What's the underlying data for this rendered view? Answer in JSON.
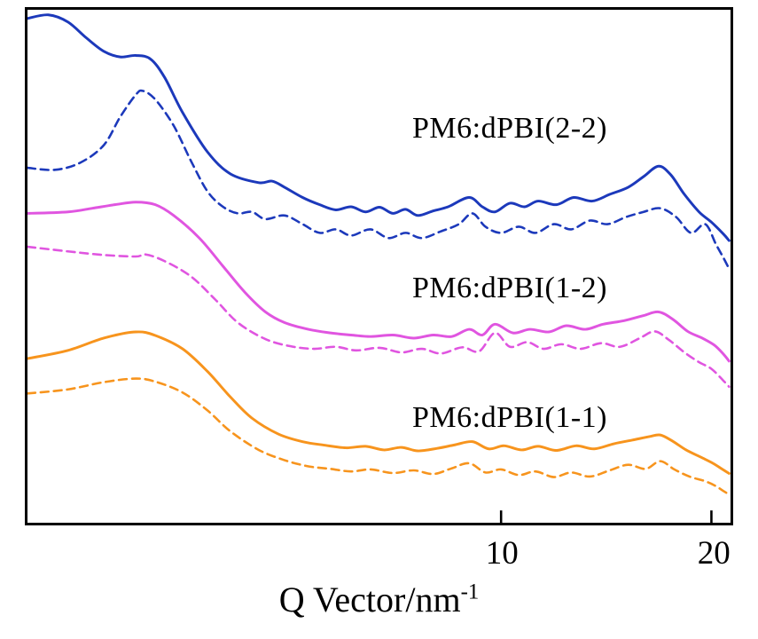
{
  "figure": {
    "background": "#ffffff",
    "frame_color": "#000000"
  },
  "chart_data": {
    "type": "line",
    "title": "",
    "x_scale": "log",
    "xlim": [
      2.1,
      21.3
    ],
    "x_ticks": [
      10,
      20
    ],
    "xlabel_base": "Q Vector/nm",
    "xlabel_exponent": "-1",
    "ylabel": "",
    "ylim": [
      0,
      100
    ],
    "y_units": "arbitrary intensity, stacked offsets, no y ticks shown",
    "grid": false,
    "legend_position": "none",
    "annotations": [
      {
        "label": "PM6:dPBI(2-2)",
        "color": "#1c39bb"
      },
      {
        "label": "PM6:dPBI(1-2)",
        "color": "#e055e0"
      },
      {
        "label": "PM6:dPBI(1-1)",
        "color": "#f7941d"
      }
    ],
    "series": [
      {
        "name": "PM6:dPBI(2-2) solid",
        "color": "#1c39bb",
        "dash": "solid",
        "points": [
          [
            2.1,
            98.3
          ],
          [
            2.25,
            99.0
          ],
          [
            2.4,
            97.6
          ],
          [
            2.55,
            94.5
          ],
          [
            2.7,
            91.9
          ],
          [
            2.85,
            90.8
          ],
          [
            3.0,
            91.1
          ],
          [
            3.15,
            90.4
          ],
          [
            3.3,
            86.8
          ],
          [
            3.5,
            80.0
          ],
          [
            3.8,
            72.3
          ],
          [
            4.1,
            68.0
          ],
          [
            4.5,
            66.3
          ],
          [
            4.7,
            66.6
          ],
          [
            4.9,
            65.4
          ],
          [
            5.2,
            63.4
          ],
          [
            5.5,
            62.0
          ],
          [
            5.8,
            61.0
          ],
          [
            6.1,
            61.6
          ],
          [
            6.4,
            60.6
          ],
          [
            6.7,
            61.5
          ],
          [
            7.0,
            60.3
          ],
          [
            7.3,
            61.1
          ],
          [
            7.6,
            59.9
          ],
          [
            8.0,
            60.8
          ],
          [
            8.4,
            61.6
          ],
          [
            9.0,
            63.4
          ],
          [
            9.4,
            61.6
          ],
          [
            9.8,
            60.6
          ],
          [
            10.3,
            62.3
          ],
          [
            10.8,
            61.6
          ],
          [
            11.3,
            62.7
          ],
          [
            12.0,
            62.0
          ],
          [
            12.7,
            63.4
          ],
          [
            13.5,
            62.7
          ],
          [
            14.3,
            64.0
          ],
          [
            15.2,
            65.4
          ],
          [
            16.0,
            67.5
          ],
          [
            16.8,
            69.5
          ],
          [
            17.5,
            67.8
          ],
          [
            18.3,
            64.0
          ],
          [
            19.2,
            60.6
          ],
          [
            20.0,
            58.6
          ],
          [
            20.8,
            56.3
          ],
          [
            21.2,
            55.0
          ]
        ]
      },
      {
        "name": "PM6:dPBI(2-2) dashed",
        "color": "#1c39bb",
        "dash": "dashed",
        "points": [
          [
            2.1,
            69.2
          ],
          [
            2.3,
            68.8
          ],
          [
            2.5,
            70.2
          ],
          [
            2.7,
            73.6
          ],
          [
            2.85,
            79.1
          ],
          [
            3.0,
            83.4
          ],
          [
            3.07,
            84.2
          ],
          [
            3.2,
            82.5
          ],
          [
            3.4,
            77.4
          ],
          [
            3.6,
            70.5
          ],
          [
            3.8,
            64.6
          ],
          [
            4.0,
            61.6
          ],
          [
            4.2,
            60.3
          ],
          [
            4.4,
            60.6
          ],
          [
            4.6,
            59.2
          ],
          [
            4.9,
            59.9
          ],
          [
            5.2,
            58.2
          ],
          [
            5.5,
            56.5
          ],
          [
            5.8,
            57.2
          ],
          [
            6.1,
            56.0
          ],
          [
            6.5,
            57.2
          ],
          [
            6.9,
            55.5
          ],
          [
            7.3,
            56.5
          ],
          [
            7.7,
            55.5
          ],
          [
            8.2,
            56.8
          ],
          [
            8.7,
            58.2
          ],
          [
            9.1,
            60.3
          ],
          [
            9.5,
            57.7
          ],
          [
            10.0,
            56.5
          ],
          [
            10.6,
            57.7
          ],
          [
            11.2,
            56.5
          ],
          [
            11.9,
            58.2
          ],
          [
            12.6,
            57.2
          ],
          [
            13.4,
            58.9
          ],
          [
            14.2,
            58.2
          ],
          [
            15.1,
            59.6
          ],
          [
            16.0,
            60.6
          ],
          [
            16.9,
            61.3
          ],
          [
            17.8,
            59.6
          ],
          [
            18.7,
            56.5
          ],
          [
            19.6,
            58.2
          ],
          [
            20.3,
            54.3
          ],
          [
            20.8,
            51.7
          ],
          [
            21.2,
            49.5
          ]
        ]
      },
      {
        "name": "PM6:dPBI(1-2) solid",
        "color": "#e055e0",
        "dash": "solid",
        "points": [
          [
            2.1,
            60.3
          ],
          [
            2.4,
            60.6
          ],
          [
            2.6,
            61.3
          ],
          [
            2.8,
            62.0
          ],
          [
            3.0,
            62.5
          ],
          [
            3.2,
            62.0
          ],
          [
            3.4,
            59.9
          ],
          [
            3.7,
            55.5
          ],
          [
            4.0,
            50.0
          ],
          [
            4.3,
            44.9
          ],
          [
            4.6,
            41.1
          ],
          [
            4.9,
            39.0
          ],
          [
            5.3,
            37.7
          ],
          [
            5.7,
            37.0
          ],
          [
            6.1,
            36.6
          ],
          [
            6.5,
            36.3
          ],
          [
            7.0,
            36.6
          ],
          [
            7.5,
            36.0
          ],
          [
            8.0,
            36.6
          ],
          [
            8.5,
            36.3
          ],
          [
            9.0,
            37.7
          ],
          [
            9.4,
            36.6
          ],
          [
            9.8,
            38.7
          ],
          [
            10.4,
            37.0
          ],
          [
            11.0,
            37.7
          ],
          [
            11.7,
            37.2
          ],
          [
            12.4,
            38.4
          ],
          [
            13.2,
            37.7
          ],
          [
            14.0,
            38.7
          ],
          [
            15.0,
            39.4
          ],
          [
            16.0,
            40.4
          ],
          [
            16.8,
            41.1
          ],
          [
            17.6,
            39.7
          ],
          [
            18.5,
            37.3
          ],
          [
            19.4,
            36.0
          ],
          [
            20.2,
            34.6
          ],
          [
            20.8,
            32.9
          ],
          [
            21.2,
            31.5
          ]
        ]
      },
      {
        "name": "PM6:dPBI(1-2) dashed",
        "color": "#e055e0",
        "dash": "dashed",
        "points": [
          [
            2.1,
            53.8
          ],
          [
            2.4,
            52.9
          ],
          [
            2.7,
            52.2
          ],
          [
            3.0,
            51.9
          ],
          [
            3.1,
            52.3
          ],
          [
            3.3,
            51.0
          ],
          [
            3.6,
            48.0
          ],
          [
            3.9,
            43.5
          ],
          [
            4.2,
            39.0
          ],
          [
            4.6,
            35.8
          ],
          [
            5.0,
            34.4
          ],
          [
            5.4,
            33.9
          ],
          [
            5.8,
            34.3
          ],
          [
            6.2,
            33.6
          ],
          [
            6.7,
            34.1
          ],
          [
            7.2,
            33.2
          ],
          [
            7.7,
            33.9
          ],
          [
            8.2,
            33.0
          ],
          [
            8.8,
            34.2
          ],
          [
            9.3,
            33.4
          ],
          [
            9.8,
            37.0
          ],
          [
            10.3,
            34.3
          ],
          [
            10.9,
            35.2
          ],
          [
            11.5,
            33.9
          ],
          [
            12.2,
            34.8
          ],
          [
            13.0,
            33.9
          ],
          [
            13.9,
            35.0
          ],
          [
            14.8,
            34.3
          ],
          [
            15.8,
            36.0
          ],
          [
            16.6,
            37.3
          ],
          [
            17.4,
            35.6
          ],
          [
            18.3,
            33.2
          ],
          [
            19.2,
            31.3
          ],
          [
            20.0,
            30.0
          ],
          [
            20.8,
            27.7
          ],
          [
            21.2,
            26.5
          ]
        ]
      },
      {
        "name": "PM6:dPBI(1-1) solid",
        "color": "#f7941d",
        "dash": "solid",
        "points": [
          [
            2.1,
            32.0
          ],
          [
            2.4,
            33.6
          ],
          [
            2.7,
            36.0
          ],
          [
            3.0,
            37.2
          ],
          [
            3.2,
            36.5
          ],
          [
            3.5,
            33.9
          ],
          [
            3.8,
            29.5
          ],
          [
            4.1,
            24.5
          ],
          [
            4.4,
            20.4
          ],
          [
            4.8,
            17.3
          ],
          [
            5.2,
            15.8
          ],
          [
            5.6,
            15.1
          ],
          [
            6.0,
            14.6
          ],
          [
            6.4,
            14.9
          ],
          [
            6.8,
            14.2
          ],
          [
            7.2,
            14.7
          ],
          [
            7.6,
            14.0
          ],
          [
            8.1,
            14.5
          ],
          [
            8.6,
            15.2
          ],
          [
            9.1,
            15.8
          ],
          [
            9.6,
            14.4
          ],
          [
            10.1,
            15.0
          ],
          [
            10.7,
            14.2
          ],
          [
            11.3,
            14.9
          ],
          [
            12.0,
            14.1
          ],
          [
            12.8,
            15.0
          ],
          [
            13.6,
            14.4
          ],
          [
            14.5,
            15.4
          ],
          [
            15.4,
            16.1
          ],
          [
            16.3,
            16.8
          ],
          [
            16.9,
            17.1
          ],
          [
            17.6,
            15.9
          ],
          [
            18.4,
            14.2
          ],
          [
            19.3,
            12.8
          ],
          [
            20.1,
            11.6
          ],
          [
            20.8,
            10.3
          ],
          [
            21.2,
            9.6
          ]
        ]
      },
      {
        "name": "PM6:dPBI(1-1) dashed",
        "color": "#f7941d",
        "dash": "dashed",
        "points": [
          [
            2.1,
            25.2
          ],
          [
            2.4,
            26.0
          ],
          [
            2.7,
            27.4
          ],
          [
            3.0,
            28.1
          ],
          [
            3.2,
            27.5
          ],
          [
            3.5,
            25.4
          ],
          [
            3.8,
            21.9
          ],
          [
            4.1,
            17.8
          ],
          [
            4.5,
            14.2
          ],
          [
            4.9,
            12.2
          ],
          [
            5.3,
            11.0
          ],
          [
            5.7,
            10.5
          ],
          [
            6.1,
            10.0
          ],
          [
            6.5,
            10.4
          ],
          [
            7.0,
            9.7
          ],
          [
            7.5,
            10.2
          ],
          [
            8.0,
            9.5
          ],
          [
            8.5,
            10.6
          ],
          [
            9.0,
            11.6
          ],
          [
            9.5,
            9.8
          ],
          [
            10.0,
            10.4
          ],
          [
            10.6,
            9.3
          ],
          [
            11.2,
            10.0
          ],
          [
            11.9,
            8.9
          ],
          [
            12.6,
            9.8
          ],
          [
            13.4,
            9.0
          ],
          [
            14.3,
            10.2
          ],
          [
            15.2,
            11.3
          ],
          [
            16.1,
            10.5
          ],
          [
            16.9,
            12.0
          ],
          [
            17.7,
            10.4
          ],
          [
            18.6,
            9.0
          ],
          [
            19.5,
            8.2
          ],
          [
            20.2,
            7.3
          ],
          [
            20.8,
            6.2
          ],
          [
            21.2,
            5.5
          ]
        ]
      }
    ]
  }
}
